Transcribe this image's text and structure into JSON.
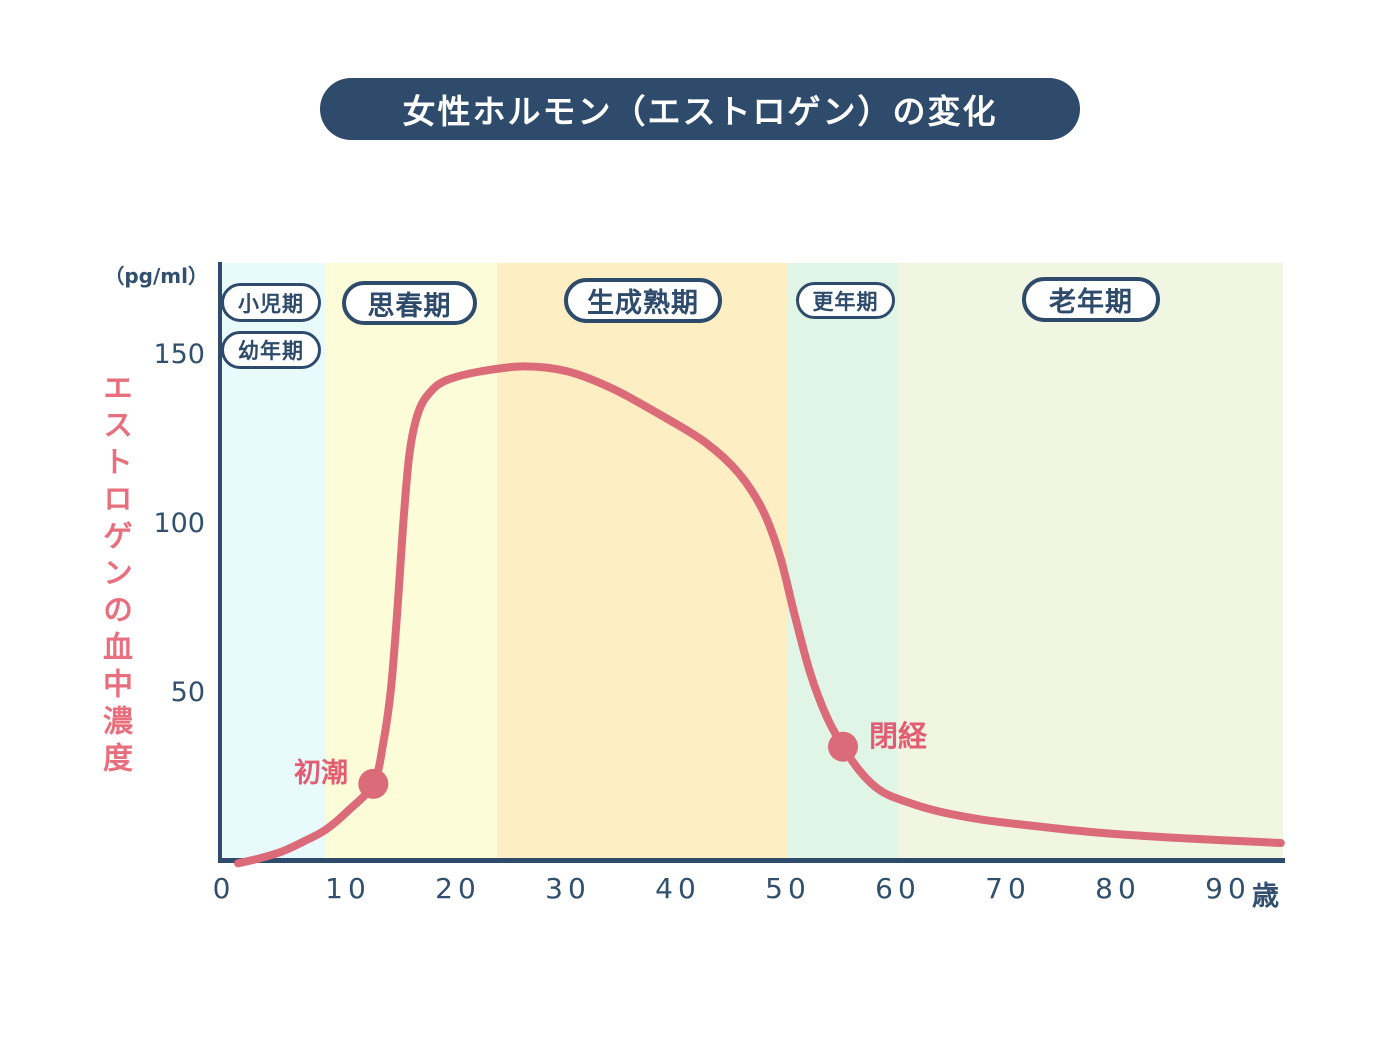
{
  "title": {
    "text": "女性ホルモン（エストロゲン）の変化"
  },
  "colors": {
    "navy": "#2e4b6b",
    "curve_pink": "#db6b79",
    "y_label_pink": "#e8707e",
    "annotation_pink": "#e25c74",
    "band_childhood_blue": "#e9fafc",
    "band_puberty_yellow": "#fdfcd8",
    "band_mature_orange": "#fdeec3",
    "band_menopause_mint": "#e1f5e7",
    "band_senior_green": "#f0f6e1"
  },
  "y_axis": {
    "unit": "（pg/ml）",
    "label": "エストロゲンの血中濃度",
    "ticks": [
      "150",
      "100",
      "50"
    ]
  },
  "x_axis": {
    "ticks": [
      "0",
      "10",
      "20",
      "30",
      "40",
      "50",
      "60",
      "70",
      "80",
      "90"
    ],
    "unit_suffix": "歳"
  },
  "stage_pills": [
    {
      "label": "小児期"
    },
    {
      "label": "幼年期"
    },
    {
      "label": "思春期"
    },
    {
      "label": "生成熟期"
    },
    {
      "label": "更年期"
    },
    {
      "label": "老年期"
    }
  ],
  "chart_data": {
    "type": "line",
    "title": "女性ホルモン（エストロゲン）の変化",
    "xlabel": "歳",
    "ylabel": "エストロゲンの血中濃度",
    "y_unit": "pg/ml",
    "x_range": [
      0,
      95
    ],
    "y_range": [
      0,
      160
    ],
    "x_ticks": [
      0,
      10,
      20,
      30,
      40,
      50,
      60,
      70,
      80,
      90
    ],
    "y_ticks": [
      50,
      100,
      150
    ],
    "grid": false,
    "legend": false,
    "series": [
      {
        "name": "エストロゲンの血中濃度",
        "color": "#db6b79",
        "points": [
          [
            0,
            0.5
          ],
          [
            2,
            2
          ],
          [
            4,
            4
          ],
          [
            6,
            7
          ],
          [
            8,
            10.5
          ],
          [
            10,
            16
          ],
          [
            12.3,
            24
          ],
          [
            13.2,
            36
          ],
          [
            13.9,
            52
          ],
          [
            14.5,
            76
          ],
          [
            15.0,
            100
          ],
          [
            15.6,
            122
          ],
          [
            16.4,
            134
          ],
          [
            17.5,
            140
          ],
          [
            19,
            143.5
          ],
          [
            22,
            146
          ],
          [
            26,
            147.5
          ],
          [
            30,
            146
          ],
          [
            34,
            141
          ],
          [
            38.5,
            133
          ],
          [
            42.5,
            125
          ],
          [
            45.5,
            116
          ],
          [
            47.7,
            105
          ],
          [
            49.3,
            91
          ],
          [
            50.6,
            74
          ],
          [
            52,
            57
          ],
          [
            53.5,
            44
          ],
          [
            55,
            35
          ],
          [
            56.6,
            27.5
          ],
          [
            58.4,
            22
          ],
          [
            60.5,
            19
          ],
          [
            63.5,
            16
          ],
          [
            67.5,
            13.5
          ],
          [
            72.5,
            11.5
          ],
          [
            78.5,
            9.5
          ],
          [
            85.5,
            8
          ],
          [
            94.8,
            6.5
          ]
        ]
      }
    ],
    "markers": [
      {
        "label": "初潮",
        "age": 12.3,
        "value": 24
      },
      {
        "label": "閉経",
        "age": 55,
        "value": 35
      }
    ],
    "bands": [
      {
        "labels": [
          "小児期",
          "幼年期"
        ],
        "age_start": 0,
        "age_end": 8,
        "color": "#e9fafc"
      },
      {
        "labels": [
          "思春期"
        ],
        "age_start": 8,
        "age_end": 23.5,
        "color": "#fdfcd8"
      },
      {
        "labels": [
          "生成熟期"
        ],
        "age_start": 23.5,
        "age_end": 50,
        "color": "#fdeec3"
      },
      {
        "labels": [
          "更年期"
        ],
        "age_start": 50,
        "age_end": 60,
        "color": "#e1f5e7"
      },
      {
        "labels": [
          "老年期"
        ],
        "age_start": 60,
        "age_end": 95,
        "color": "#f0f6e1"
      }
    ]
  }
}
